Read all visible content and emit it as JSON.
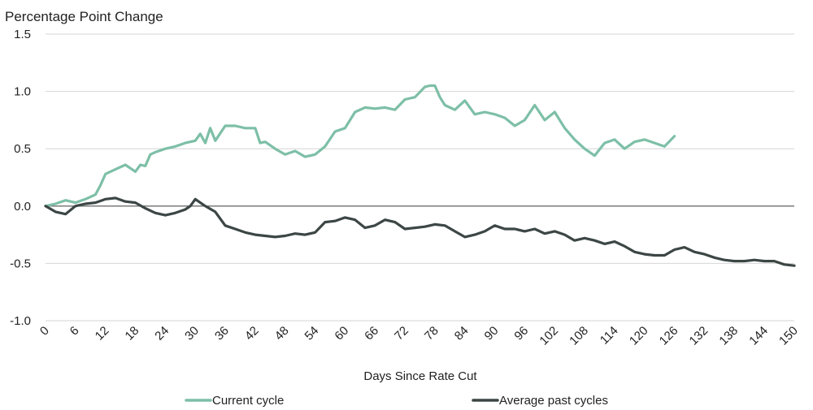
{
  "chart_data": {
    "type": "line",
    "title": "",
    "ylabel": "Percentage Point Change",
    "xlabel": "Days Since Rate Cut",
    "ylim": [
      -1.0,
      1.5
    ],
    "xlim": [
      0,
      150
    ],
    "yticks": [
      1.5,
      1.0,
      0.5,
      0.0,
      -0.5,
      -1.0
    ],
    "ytick_labels": [
      "1.5",
      "1.0",
      "0.5",
      "0.0",
      "-0.5",
      "-1.0"
    ],
    "xticks": [
      0,
      6,
      12,
      18,
      24,
      30,
      36,
      42,
      48,
      54,
      60,
      66,
      72,
      78,
      84,
      90,
      96,
      102,
      108,
      114,
      120,
      126,
      132,
      138,
      144,
      150
    ],
    "grid": "horizontal",
    "legend_position": "bottom",
    "series": [
      {
        "name": "Current cycle",
        "color": "#7dbfa7",
        "x": [
          0,
          2,
          4,
          6,
          8,
          10,
          11,
          12,
          14,
          16,
          18,
          19,
          20,
          21,
          22,
          24,
          26,
          28,
          30,
          31,
          32,
          33,
          34,
          36,
          38,
          40,
          42,
          43,
          44,
          46,
          48,
          50,
          52,
          54,
          56,
          58,
          60,
          62,
          64,
          66,
          68,
          70,
          72,
          74,
          76,
          77,
          78,
          79,
          80,
          82,
          84,
          86,
          88,
          90,
          92,
          94,
          96,
          98,
          100,
          102,
          104,
          106,
          108,
          110,
          112,
          114,
          116,
          118,
          120,
          122,
          124,
          126
        ],
        "values": [
          0.0,
          0.02,
          0.05,
          0.03,
          0.06,
          0.1,
          0.18,
          0.28,
          0.32,
          0.36,
          0.3,
          0.36,
          0.35,
          0.45,
          0.47,
          0.5,
          0.52,
          0.55,
          0.57,
          0.63,
          0.55,
          0.68,
          0.57,
          0.7,
          0.7,
          0.68,
          0.68,
          0.55,
          0.56,
          0.5,
          0.45,
          0.48,
          0.43,
          0.45,
          0.52,
          0.65,
          0.68,
          0.82,
          0.86,
          0.85,
          0.86,
          0.84,
          0.93,
          0.95,
          1.04,
          1.05,
          1.05,
          0.95,
          0.88,
          0.84,
          0.92,
          0.8,
          0.82,
          0.8,
          0.77,
          0.7,
          0.75,
          0.88,
          0.75,
          0.82,
          0.68,
          0.58,
          0.5,
          0.44,
          0.55,
          0.58,
          0.5,
          0.56,
          0.58,
          0.55,
          0.52,
          0.61
        ]
      },
      {
        "name": "Average past cycles",
        "color": "#3c4645",
        "x": [
          0,
          2,
          4,
          6,
          8,
          10,
          12,
          14,
          16,
          18,
          20,
          22,
          24,
          26,
          28,
          29,
          30,
          31,
          32,
          34,
          36,
          38,
          40,
          42,
          44,
          46,
          48,
          50,
          52,
          54,
          56,
          58,
          60,
          62,
          64,
          66,
          68,
          70,
          72,
          74,
          76,
          78,
          80,
          82,
          84,
          86,
          88,
          90,
          92,
          94,
          96,
          98,
          100,
          102,
          104,
          106,
          108,
          110,
          112,
          114,
          116,
          118,
          120,
          122,
          124,
          126,
          128,
          130,
          132,
          134,
          136,
          138,
          140,
          142,
          144,
          146,
          148,
          150
        ],
        "values": [
          0.0,
          -0.05,
          -0.07,
          0.0,
          0.02,
          0.03,
          0.06,
          0.07,
          0.04,
          0.03,
          -0.02,
          -0.06,
          -0.08,
          -0.06,
          -0.03,
          0.0,
          0.06,
          0.03,
          0.0,
          -0.05,
          -0.17,
          -0.2,
          -0.23,
          -0.25,
          -0.26,
          -0.27,
          -0.26,
          -0.24,
          -0.25,
          -0.23,
          -0.14,
          -0.13,
          -0.1,
          -0.12,
          -0.19,
          -0.17,
          -0.12,
          -0.14,
          -0.2,
          -0.19,
          -0.18,
          -0.16,
          -0.17,
          -0.22,
          -0.27,
          -0.25,
          -0.22,
          -0.17,
          -0.2,
          -0.2,
          -0.22,
          -0.2,
          -0.24,
          -0.22,
          -0.25,
          -0.3,
          -0.28,
          -0.3,
          -0.33,
          -0.31,
          -0.35,
          -0.4,
          -0.42,
          -0.43,
          -0.43,
          -0.38,
          -0.36,
          -0.4,
          -0.42,
          -0.45,
          -0.47,
          -0.48,
          -0.48,
          -0.47,
          -0.48,
          -0.48,
          -0.51,
          -0.52
        ]
      }
    ]
  }
}
